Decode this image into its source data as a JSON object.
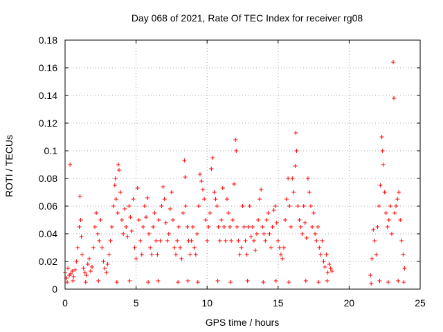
{
  "chart_data": {
    "type": "scatter",
    "title": "Day 068 of 2021, Rate Of TEC Index for receiver rg08",
    "xlabel": "GPS time / hours",
    "ylabel": "ROTI / TECUs",
    "xlim": [
      0,
      25
    ],
    "ylim": [
      0,
      0.18
    ],
    "x_ticks": [
      0,
      5,
      10,
      15,
      20,
      25
    ],
    "y_ticks": [
      0,
      0.02,
      0.04,
      0.06,
      0.08,
      0.1,
      0.12,
      0.14,
      0.16,
      0.18
    ],
    "x_tick_labels": [
      "0",
      "5",
      "10",
      "15",
      "20",
      "25"
    ],
    "y_tick_labels": [
      "0",
      "0.02",
      "0.04",
      "0.06",
      "0.08",
      "0.1",
      "0.12",
      "0.14",
      "0.16",
      "0.18"
    ],
    "grid": true,
    "marker": "+",
    "series_color": "#ff0000",
    "series": [
      {
        "points": [
          [
            0.0,
            0.012
          ],
          [
            0.1,
            0.008
          ],
          [
            0.2,
            0.015
          ],
          [
            0.3,
            0.01
          ],
          [
            0.35,
            0.09
          ],
          [
            0.4,
            0.011
          ],
          [
            0.5,
            0.013
          ],
          [
            0.6,
            0.009
          ],
          [
            0.7,
            0.014
          ],
          [
            0.8,
            0.02
          ],
          [
            0.9,
            0.03
          ],
          [
            1.0,
            0.045
          ],
          [
            1.05,
            0.067
          ],
          [
            1.1,
            0.05
          ],
          [
            1.15,
            0.038
          ],
          [
            1.2,
            0.025
          ],
          [
            1.3,
            0.015
          ],
          [
            1.4,
            0.012
          ],
          [
            1.5,
            0.01
          ],
          [
            1.6,
            0.018
          ],
          [
            1.7,
            0.022
          ],
          [
            1.8,
            0.013
          ],
          [
            1.9,
            0.016
          ],
          [
            2.0,
            0.03
          ],
          [
            2.1,
            0.045
          ],
          [
            2.2,
            0.055
          ],
          [
            2.3,
            0.04
          ],
          [
            2.4,
            0.035
          ],
          [
            2.5,
            0.05
          ],
          [
            2.6,
            0.03
          ],
          [
            2.7,
            0.02
          ],
          [
            2.8,
            0.015
          ],
          [
            2.9,
            0.012
          ],
          [
            3.0,
            0.018
          ],
          [
            3.1,
            0.025
          ],
          [
            3.2,
            0.035
          ],
          [
            3.3,
            0.045
          ],
          [
            3.4,
            0.06
          ],
          [
            3.5,
            0.075
          ],
          [
            3.55,
            0.08
          ],
          [
            3.6,
            0.065
          ],
          [
            3.7,
            0.055
          ],
          [
            3.75,
            0.09
          ],
          [
            3.8,
            0.086
          ],
          [
            3.9,
            0.07
          ],
          [
            4.0,
            0.05
          ],
          [
            4.1,
            0.04
          ],
          [
            4.2,
            0.058
          ],
          [
            4.3,
            0.045
          ],
          [
            4.4,
            0.038
          ],
          [
            4.5,
            0.06
          ],
          [
            4.6,
            0.052
          ],
          [
            4.7,
            0.042
          ],
          [
            4.8,
            0.065
          ],
          [
            4.9,
            0.03
          ],
          [
            5.0,
            0.022
          ],
          [
            5.1,
            0.073
          ],
          [
            5.2,
            0.05
          ],
          [
            5.3,
            0.035
          ],
          [
            5.4,
            0.025
          ],
          [
            5.5,
            0.045
          ],
          [
            5.6,
            0.06
          ],
          [
            5.7,
            0.052
          ],
          [
            5.8,
            0.066
          ],
          [
            5.9,
            0.04
          ],
          [
            6.0,
            0.03
          ],
          [
            6.1,
            0.025
          ],
          [
            6.2,
            0.045
          ],
          [
            6.3,
            0.055
          ],
          [
            6.4,
            0.035
          ],
          [
            6.5,
            0.025
          ],
          [
            6.6,
            0.05
          ],
          [
            6.7,
            0.035
          ],
          [
            6.8,
            0.06
          ],
          [
            6.9,
            0.074
          ],
          [
            7.0,
            0.065
          ],
          [
            7.1,
            0.048
          ],
          [
            7.2,
            0.035
          ],
          [
            7.3,
            0.04
          ],
          [
            7.4,
            0.058
          ],
          [
            7.5,
            0.07
          ],
          [
            7.6,
            0.05
          ],
          [
            7.7,
            0.03
          ],
          [
            7.8,
            0.025
          ],
          [
            7.9,
            0.035
          ],
          [
            8.0,
            0.045
          ],
          [
            8.1,
            0.03
          ],
          [
            8.2,
            0.022
          ],
          [
            8.3,
            0.055
          ],
          [
            8.4,
            0.093
          ],
          [
            8.45,
            0.081
          ],
          [
            8.5,
            0.06
          ],
          [
            8.6,
            0.045
          ],
          [
            8.7,
            0.035
          ],
          [
            8.8,
            0.025
          ],
          [
            8.9,
            0.035
          ],
          [
            9.0,
            0.045
          ],
          [
            9.1,
            0.03
          ],
          [
            9.2,
            0.025
          ],
          [
            9.3,
            0.04
          ],
          [
            9.4,
            0.06
          ],
          [
            9.5,
            0.083
          ],
          [
            9.6,
            0.078
          ],
          [
            9.7,
            0.072
          ],
          [
            9.8,
            0.065
          ],
          [
            9.9,
            0.05
          ],
          [
            10.0,
            0.035
          ],
          [
            10.1,
            0.045
          ],
          [
            10.2,
            0.055
          ],
          [
            10.3,
            0.087
          ],
          [
            10.4,
            0.095
          ],
          [
            10.5,
            0.07
          ],
          [
            10.6,
            0.065
          ],
          [
            10.7,
            0.06
          ],
          [
            10.8,
            0.045
          ],
          [
            10.9,
            0.035
          ],
          [
            11.0,
            0.05
          ],
          [
            11.1,
            0.073
          ],
          [
            11.2,
            0.045
          ],
          [
            11.3,
            0.035
          ],
          [
            11.4,
            0.065
          ],
          [
            11.5,
            0.055
          ],
          [
            11.6,
            0.045
          ],
          [
            11.7,
            0.035
          ],
          [
            11.8,
            0.05
          ],
          [
            11.9,
            0.076
          ],
          [
            12.0,
            0.108
          ],
          [
            12.05,
            0.1
          ],
          [
            12.1,
            0.045
          ],
          [
            12.2,
            0.035
          ],
          [
            12.3,
            0.025
          ],
          [
            12.4,
            0.03
          ],
          [
            12.5,
            0.06
          ],
          [
            12.6,
            0.045
          ],
          [
            12.7,
            0.035
          ],
          [
            12.8,
            0.025
          ],
          [
            12.9,
            0.045
          ],
          [
            13.0,
            0.06
          ],
          [
            13.1,
            0.038
          ],
          [
            13.2,
            0.045
          ],
          [
            13.3,
            0.035
          ],
          [
            13.4,
            0.028
          ],
          [
            13.5,
            0.04
          ],
          [
            13.6,
            0.05
          ],
          [
            13.7,
            0.065
          ],
          [
            13.8,
            0.072
          ],
          [
            13.9,
            0.045
          ],
          [
            14.0,
            0.04
          ],
          [
            14.1,
            0.035
          ],
          [
            14.2,
            0.05
          ],
          [
            14.3,
            0.055
          ],
          [
            14.4,
            0.04
          ],
          [
            14.5,
            0.03
          ],
          [
            14.6,
            0.045
          ],
          [
            14.7,
            0.057
          ],
          [
            14.8,
            0.06
          ],
          [
            14.9,
            0.048
          ],
          [
            15.0,
            0.035
          ],
          [
            15.1,
            0.03
          ],
          [
            15.2,
            0.025
          ],
          [
            15.3,
            0.022
          ],
          [
            15.4,
            0.03
          ],
          [
            15.5,
            0.05
          ],
          [
            15.6,
            0.065
          ],
          [
            15.7,
            0.08
          ],
          [
            15.8,
            0.06
          ],
          [
            15.9,
            0.045
          ],
          [
            16.0,
            0.08
          ],
          [
            16.1,
            0.07
          ],
          [
            16.2,
            0.089
          ],
          [
            16.25,
            0.113
          ],
          [
            16.3,
            0.1
          ],
          [
            16.4,
            0.06
          ],
          [
            16.5,
            0.05
          ],
          [
            16.6,
            0.045
          ],
          [
            16.7,
            0.04
          ],
          [
            16.8,
            0.06
          ],
          [
            16.9,
            0.048
          ],
          [
            17.0,
            0.037
          ],
          [
            17.1,
            0.08
          ],
          [
            17.2,
            0.07
          ],
          [
            17.3,
            0.06
          ],
          [
            17.4,
            0.045
          ],
          [
            17.5,
            0.055
          ],
          [
            17.6,
            0.04
          ],
          [
            17.7,
            0.035
          ],
          [
            17.8,
            0.045
          ],
          [
            17.9,
            0.03
          ],
          [
            18.0,
            0.025
          ],
          [
            18.1,
            0.035
          ],
          [
            18.2,
            0.02
          ],
          [
            18.3,
            0.016
          ],
          [
            18.4,
            0.025
          ],
          [
            18.5,
            0.012
          ],
          [
            18.6,
            0.018
          ],
          [
            18.7,
            0.015
          ],
          [
            18.8,
            0.013
          ],
          [
            21.5,
            0.01
          ],
          [
            21.6,
            0.022
          ],
          [
            21.7,
            0.043
          ],
          [
            21.8,
            0.035
          ],
          [
            21.9,
            0.025
          ],
          [
            22.0,
            0.045
          ],
          [
            22.1,
            0.06
          ],
          [
            22.2,
            0.075
          ],
          [
            22.3,
            0.11
          ],
          [
            22.35,
            0.1
          ],
          [
            22.4,
            0.09
          ],
          [
            22.5,
            0.07
          ],
          [
            22.6,
            0.055
          ],
          [
            22.7,
            0.045
          ],
          [
            22.8,
            0.05
          ],
          [
            22.9,
            0.06
          ],
          [
            23.0,
            0.04
          ],
          [
            23.1,
            0.164
          ],
          [
            23.15,
            0.138
          ],
          [
            23.2,
            0.055
          ],
          [
            23.3,
            0.06
          ],
          [
            23.4,
            0.065
          ],
          [
            23.5,
            0.07
          ],
          [
            23.6,
            0.05
          ],
          [
            23.7,
            0.035
          ],
          [
            23.8,
            0.025
          ],
          [
            23.9,
            0.015
          ],
          [
            0.15,
            0.005
          ],
          [
            0.55,
            0.006
          ],
          [
            1.45,
            0.005
          ],
          [
            2.35,
            0.006
          ],
          [
            3.65,
            0.005
          ],
          [
            4.55,
            0.006
          ],
          [
            5.85,
            0.005
          ],
          [
            6.55,
            0.006
          ],
          [
            7.95,
            0.005
          ],
          [
            8.65,
            0.006
          ],
          [
            9.35,
            0.005
          ],
          [
            10.75,
            0.006
          ],
          [
            11.65,
            0.005
          ],
          [
            12.85,
            0.006
          ],
          [
            13.95,
            0.005
          ],
          [
            14.85,
            0.006
          ],
          [
            15.75,
            0.005
          ],
          [
            16.95,
            0.006
          ],
          [
            17.85,
            0.005
          ],
          [
            18.45,
            0.006
          ],
          [
            21.55,
            0.004
          ],
          [
            22.15,
            0.006
          ],
          [
            22.75,
            0.005
          ],
          [
            23.45,
            0.006
          ],
          [
            23.85,
            0.005
          ]
        ]
      }
    ]
  }
}
